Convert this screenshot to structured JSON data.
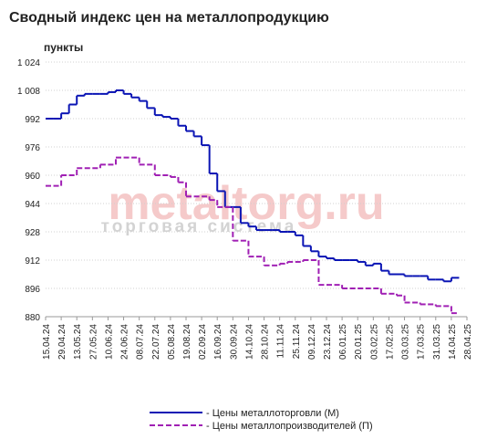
{
  "chart_data": {
    "type": "step-line",
    "title": "Сводный индекс цен на металлопродукцию",
    "y_label": "пункты",
    "watermark": {
      "brand": "metaltorg.ru",
      "tagline": "торговая система"
    },
    "categories": [
      "15.04.24",
      null,
      "29.04.24",
      null,
      "13.05.24",
      null,
      "27.05.24",
      null,
      "10.06.24",
      null,
      "24.06.24",
      null,
      "08.07.24",
      null,
      "22.07.24",
      null,
      "05.08.24",
      null,
      "19.08.24",
      null,
      "02.09.24",
      null,
      "16.09.24",
      null,
      "30.09.24",
      null,
      "14.10.24",
      null,
      "28.10.24",
      null,
      "11.11.24",
      null,
      "25.11.24",
      null,
      "09.12.24",
      null,
      "23.12.24",
      null,
      "06.01.25",
      null,
      "20.01.25",
      null,
      "03.02.25",
      null,
      "17.02.25",
      null,
      "03.03.25",
      null,
      "17.03.25",
      null,
      "31.03.25",
      null,
      "14.04.25",
      null,
      "28.04.25"
    ],
    "series": [
      {
        "name": "- Цены металлоторговли (М)",
        "color": "#0a14b4",
        "dash": false,
        "values": [
          992,
          992,
          995,
          1000,
          1005,
          1006,
          1006,
          1006,
          1007,
          1008,
          1006,
          1004,
          1002,
          998,
          994,
          993,
          992,
          988,
          985,
          982,
          977,
          961,
          951,
          942,
          942,
          933,
          931,
          929,
          929,
          929,
          928,
          928,
          926,
          920,
          917,
          914,
          913,
          912,
          912,
          912,
          911,
          909,
          910,
          906,
          904,
          904,
          903,
          903,
          903,
          901,
          901,
          900,
          902,
          null,
          null
        ]
      },
      {
        "name": "- Цены металлопроизводителей (П)",
        "color": "#a020b4",
        "dash": true,
        "values": [
          954,
          954,
          960,
          960,
          964,
          964,
          964,
          966,
          966,
          970,
          970,
          970,
          966,
          966,
          960,
          960,
          959,
          956,
          948,
          948,
          948,
          946,
          942,
          942,
          923,
          923,
          914,
          914,
          909,
          909,
          910,
          911,
          911,
          912,
          912,
          898,
          898,
          898,
          896,
          896,
          896,
          896,
          896,
          893,
          893,
          892,
          888,
          888,
          887,
          887,
          886,
          886,
          882,
          null,
          null
        ]
      }
    ],
    "ylim": [
      880,
      1024
    ],
    "yticks": [
      880,
      896,
      912,
      928,
      944,
      960,
      976,
      992,
      {
        "value": 1008,
        "label": "1 008"
      },
      {
        "value": 1024,
        "label": "1 024"
      }
    ],
    "grid": true
  }
}
